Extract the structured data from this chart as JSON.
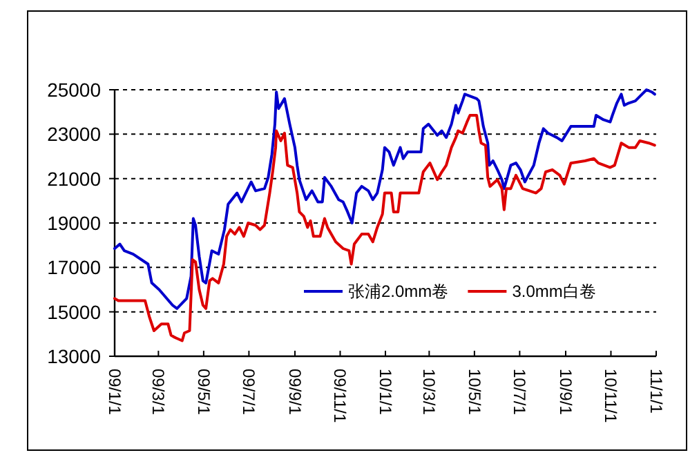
{
  "chart_data": {
    "type": "line",
    "xlim": [
      "2009-01-01",
      "2011-01-01"
    ],
    "xticks": [
      {
        "value": "2009-01-01",
        "label": "09/1/1"
      },
      {
        "value": "2009-03-01",
        "label": "09/3/1"
      },
      {
        "value": "2009-05-01",
        "label": "09/5/1"
      },
      {
        "value": "2009-07-01",
        "label": "09/7/1"
      },
      {
        "value": "2009-09-01",
        "label": "09/9/1"
      },
      {
        "value": "2009-11-01",
        "label": "09/11/1"
      },
      {
        "value": "2010-01-01",
        "label": "10/1/1"
      },
      {
        "value": "2010-03-01",
        "label": "10/3/1"
      },
      {
        "value": "2010-05-01",
        "label": "10/5/1"
      },
      {
        "value": "2010-07-01",
        "label": "10/7/1"
      },
      {
        "value": "2010-09-01",
        "label": "10/9/1"
      },
      {
        "value": "2010-11-01",
        "label": "10/11/1"
      },
      {
        "value": "2011-01-01",
        "label": "11/1/1"
      }
    ],
    "ylim": [
      13000,
      25000
    ],
    "yticks": [
      13000,
      15000,
      17000,
      19000,
      21000,
      23000,
      25000
    ],
    "grid": "y",
    "legend": "bottom right",
    "marker": "none",
    "line_style": "solid",
    "series": [
      {
        "name": "张浦2.0mm卷",
        "color": "#0000cc",
        "x": [
          "2009-01-01",
          "2009-01-08",
          "2009-01-14",
          "2009-01-26",
          "2009-02-15",
          "2009-02-20",
          "2009-03-02",
          "2009-03-20",
          "2009-03-26",
          "2009-04-08",
          "2009-04-14",
          "2009-04-17",
          "2009-04-20",
          "2009-04-25",
          "2009-04-30",
          "2009-05-04",
          "2009-05-09",
          "2009-05-12",
          "2009-05-21",
          "2009-05-29",
          "2009-06-03",
          "2009-06-15",
          "2009-06-21",
          "2009-07-04",
          "2009-07-10",
          "2009-07-22",
          "2009-07-27",
          "2009-08-01",
          "2009-08-05",
          "2009-08-07",
          "2009-08-10",
          "2009-08-18",
          "2009-08-25",
          "2009-09-01",
          "2009-09-04",
          "2009-09-07",
          "2009-09-16",
          "2009-09-24",
          "2009-10-02",
          "2009-10-08",
          "2009-10-11",
          "2009-10-20",
          "2009-10-30",
          "2009-11-05",
          "2009-11-11",
          "2009-11-17",
          "2009-11-23",
          "2009-11-30",
          "2009-12-09",
          "2009-12-15",
          "2009-12-21",
          "2009-12-28",
          "2009-12-31",
          "2010-01-06",
          "2010-01-12",
          "2010-01-21",
          "2010-01-25",
          "2010-01-31",
          "2010-02-18",
          "2010-02-21",
          "2010-02-28",
          "2010-03-12",
          "2010-03-18",
          "2010-03-24",
          "2010-03-31",
          "2010-04-06",
          "2010-04-09",
          "2010-04-15",
          "2010-04-18",
          "2010-05-04",
          "2010-05-07",
          "2010-05-10",
          "2010-05-13",
          "2010-05-19",
          "2010-05-21",
          "2010-05-26",
          "2010-06-01",
          "2010-06-07",
          "2010-06-10",
          "2010-06-19",
          "2010-06-26",
          "2010-07-02",
          "2010-07-08",
          "2010-07-20",
          "2010-07-27",
          "2010-08-02",
          "2010-08-08",
          "2010-08-20",
          "2010-08-27",
          "2010-09-08",
          "2010-10-09",
          "2010-10-12",
          "2010-10-22",
          "2010-10-31",
          "2010-11-03",
          "2010-11-09",
          "2010-11-15",
          "2010-11-19",
          "2010-11-25",
          "2010-12-04",
          "2010-12-13",
          "2010-12-19",
          "2010-12-26",
          "2010-12-30"
        ],
        "values": [
          17850,
          18050,
          17750,
          17600,
          17150,
          16300,
          16000,
          15300,
          15150,
          15600,
          16600,
          19200,
          18900,
          17500,
          16400,
          16300,
          17200,
          17750,
          17600,
          18700,
          19850,
          20350,
          19950,
          20850,
          20450,
          20550,
          21050,
          22100,
          23450,
          24900,
          24150,
          24600,
          23450,
          22400,
          21600,
          20950,
          20050,
          20450,
          19950,
          19950,
          21050,
          20650,
          20050,
          19950,
          19500,
          19000,
          20350,
          20650,
          20450,
          20050,
          20350,
          21400,
          22400,
          22200,
          21600,
          22400,
          21900,
          22200,
          22200,
          23250,
          23450,
          22950,
          23150,
          22850,
          23450,
          24300,
          23950,
          24500,
          24800,
          24600,
          24500,
          23950,
          23350,
          22600,
          21600,
          21800,
          21400,
          20950,
          20550,
          21600,
          21700,
          21400,
          20850,
          21600,
          22600,
          23250,
          23050,
          22850,
          22700,
          23350,
          23350,
          23850,
          23650,
          23550,
          23850,
          24400,
          24800,
          24300,
          24400,
          24500,
          24800,
          25000,
          24900,
          24800
        ]
      },
      {
        "name": "3.0mm白卷",
        "color": "#dd0000",
        "x": [
          "2009-01-01",
          "2009-01-06",
          "2009-02-11",
          "2009-02-17",
          "2009-02-23",
          "2009-03-05",
          "2009-03-14",
          "2009-03-18",
          "2009-03-23",
          "2009-04-02",
          "2009-04-05",
          "2009-04-12",
          "2009-04-16",
          "2009-04-20",
          "2009-04-25",
          "2009-04-30",
          "2009-05-04",
          "2009-05-09",
          "2009-05-13",
          "2009-05-21",
          "2009-05-28",
          "2009-06-01",
          "2009-06-06",
          "2009-06-12",
          "2009-06-18",
          "2009-06-24",
          "2009-06-30",
          "2009-07-10",
          "2009-07-16",
          "2009-07-22",
          "2009-07-29",
          "2009-08-02",
          "2009-08-06",
          "2009-08-07",
          "2009-08-13",
          "2009-08-18",
          "2009-08-22",
          "2009-08-29",
          "2009-09-04",
          "2009-09-07",
          "2009-09-13",
          "2009-09-18",
          "2009-09-22",
          "2009-09-26",
          "2009-10-05",
          "2009-10-11",
          "2009-10-15",
          "2009-10-20",
          "2009-10-26",
          "2009-11-05",
          "2009-11-13",
          "2009-11-16",
          "2009-11-20",
          "2009-11-30",
          "2009-12-09",
          "2009-12-15",
          "2009-12-21",
          "2009-12-28",
          "2009-12-31",
          "2010-01-09",
          "2010-01-12",
          "2010-01-18",
          "2010-01-21",
          "2010-02-15",
          "2010-02-21",
          "2010-03-02",
          "2010-03-12",
          "2010-03-18",
          "2010-03-24",
          "2010-03-31",
          "2010-04-06",
          "2010-04-09",
          "2010-04-15",
          "2010-04-21",
          "2010-04-25",
          "2010-05-04",
          "2010-05-07",
          "2010-05-10",
          "2010-05-16",
          "2010-05-19",
          "2010-05-22",
          "2010-06-01",
          "2010-06-07",
          "2010-06-10",
          "2010-06-13",
          "2010-06-19",
          "2010-06-26",
          "2010-07-05",
          "2010-07-23",
          "2010-07-30",
          "2010-08-05",
          "2010-08-14",
          "2010-08-24",
          "2010-08-30",
          "2010-09-08",
          "2010-09-27",
          "2010-10-09",
          "2010-10-15",
          "2010-10-31",
          "2010-11-06",
          "2010-11-15",
          "2010-11-25",
          "2010-12-04",
          "2010-12-10",
          "2010-12-22",
          "2010-12-30"
        ],
        "values": [
          15600,
          15500,
          15500,
          14750,
          14150,
          14450,
          14450,
          13950,
          13850,
          13700,
          14050,
          14150,
          17350,
          17250,
          16000,
          15300,
          15150,
          16400,
          16500,
          16300,
          17150,
          18400,
          18700,
          18500,
          18800,
          18400,
          19000,
          18900,
          18700,
          18900,
          20350,
          21300,
          22400,
          23150,
          22700,
          23050,
          21600,
          21500,
          20350,
          19500,
          19300,
          18800,
          19100,
          18400,
          18400,
          19200,
          18800,
          18500,
          18150,
          17850,
          17750,
          17150,
          18050,
          18500,
          18500,
          18150,
          18800,
          19400,
          20350,
          20350,
          19500,
          19500,
          20350,
          20350,
          21300,
          21700,
          20950,
          21300,
          21600,
          22400,
          22850,
          23150,
          23050,
          23550,
          23850,
          23850,
          23150,
          22600,
          22500,
          21050,
          20650,
          20950,
          20550,
          19600,
          20550,
          20550,
          21150,
          20550,
          20350,
          20550,
          21300,
          21400,
          21150,
          20750,
          21700,
          21800,
          21900,
          21700,
          21500,
          21600,
          22600,
          22400,
          22400,
          22700,
          22600,
          22500
        ]
      }
    ]
  }
}
